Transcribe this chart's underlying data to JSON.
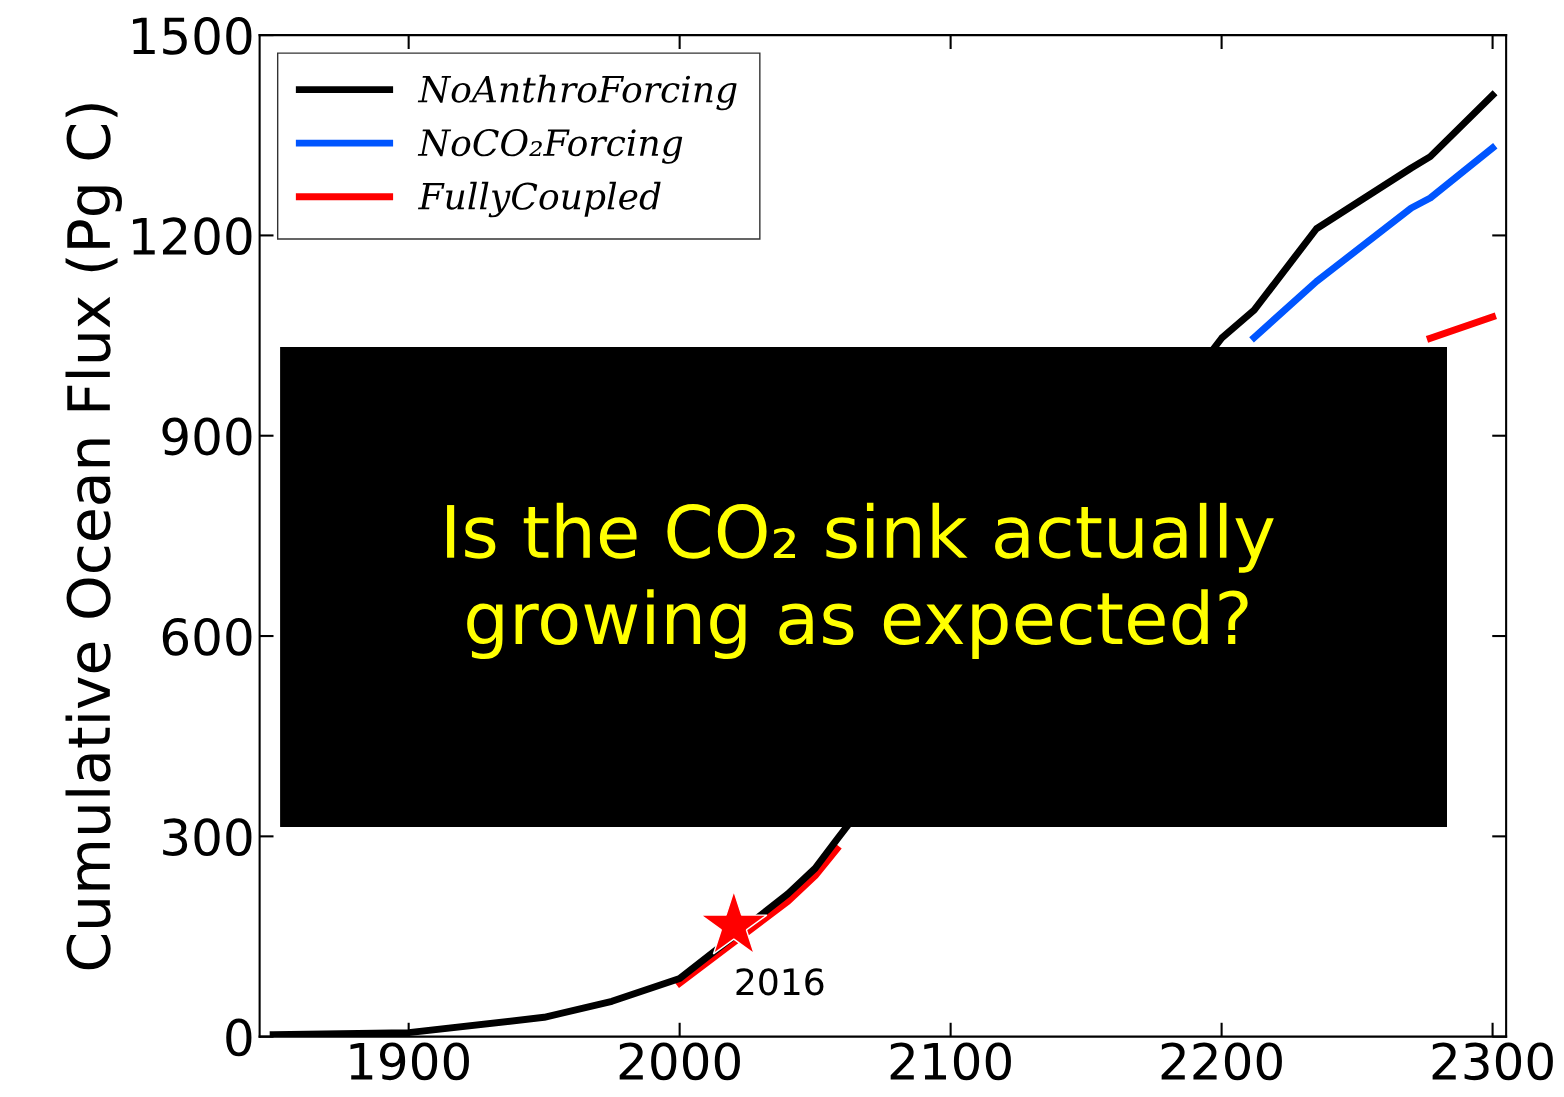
{
  "chart_data": {
    "type": "line",
    "ylabel": "Cumulative Ocean Flux (Pg C)",
    "x": [
      1850,
      1900,
      1950,
      1975,
      2000,
      2040,
      2050,
      2058,
      2200,
      2212,
      2235,
      2270,
      2277,
      2300
    ],
    "series": [
      {
        "name": "NoAnthroForcing",
        "color": "#000000",
        "values": [
          3,
          6,
          29,
          53,
          87,
          214,
          252,
          295,
          1046,
          1088,
          1210,
          1301,
          1318,
          1410
        ]
      },
      {
        "name": "NoCO₂Forcing",
        "color": "#0055ff",
        "values": [
          null,
          null,
          null,
          null,
          null,
          null,
          null,
          null,
          null,
          1047,
          1131,
          1241,
          1256,
          1331
        ]
      },
      {
        "name": "FullyCoupled",
        "color": "#ff0000",
        "values": [
          null,
          null,
          null,
          null,
          80,
          203,
          241,
          281,
          null,
          null,
          null,
          null,
          1046,
          1078
        ]
      },
      {
        "type": "scatter",
        "marker": "star",
        "color": "#ff0000",
        "x": [
          2020
        ],
        "values": [
          166
        ]
      }
    ],
    "xlim": [
      1845,
      2305
    ],
    "ylim": [
      0,
      1500
    ],
    "xticks": [
      1900,
      2000,
      2100,
      2200,
      2300
    ],
    "yticks": [
      0,
      300,
      600,
      900,
      1200,
      1500
    ],
    "grid": false,
    "legend": "top left",
    "annotations": [
      {
        "text": "2016",
        "x": 2020,
        "y": 166
      },
      "Is the CO₂ sink actually growing as expected?"
    ]
  }
}
